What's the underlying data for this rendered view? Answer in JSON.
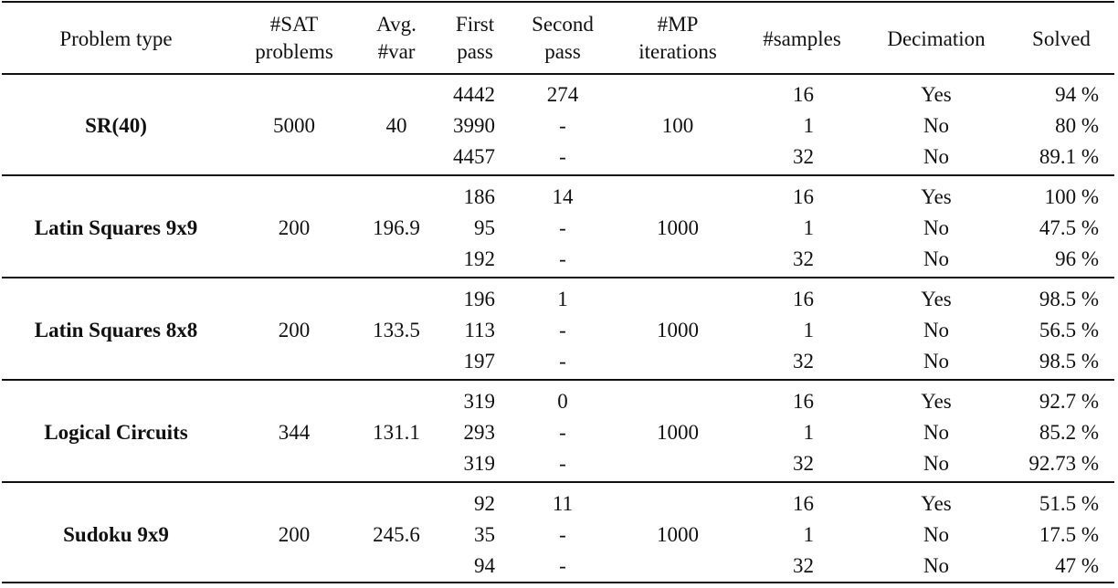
{
  "headers": [
    [
      "Problem type"
    ],
    [
      "#SAT",
      "problems"
    ],
    [
      "Avg.",
      "#var"
    ],
    [
      "First",
      "pass"
    ],
    [
      "Second",
      "pass"
    ],
    [
      "#MP",
      "iterations"
    ],
    [
      "#samples"
    ],
    [
      "Decimation"
    ],
    [
      "Solved"
    ]
  ],
  "groups": [
    {
      "problem_type": "SR(40)",
      "sat_problems": "5000",
      "avg_var": "40",
      "mp_iterations": "100",
      "rows": [
        {
          "first_pass": "4442",
          "second_pass": "274",
          "samples": "16",
          "decimation": "Yes",
          "solved": "94 %"
        },
        {
          "first_pass": "3990",
          "second_pass": "-",
          "samples": "1",
          "decimation": "No",
          "solved": "80 %"
        },
        {
          "first_pass": "4457",
          "second_pass": "-",
          "samples": "32",
          "decimation": "No",
          "solved": "89.1 %"
        }
      ]
    },
    {
      "problem_type": "Latin Squares 9x9",
      "sat_problems": "200",
      "avg_var": "196.9",
      "mp_iterations": "1000",
      "rows": [
        {
          "first_pass": "186",
          "second_pass": "14",
          "samples": "16",
          "decimation": "Yes",
          "solved": "100 %"
        },
        {
          "first_pass": "95",
          "second_pass": "-",
          "samples": "1",
          "decimation": "No",
          "solved": "47.5 %"
        },
        {
          "first_pass": "192",
          "second_pass": "-",
          "samples": "32",
          "decimation": "No",
          "solved": "96 %"
        }
      ]
    },
    {
      "problem_type": "Latin Squares 8x8",
      "sat_problems": "200",
      "avg_var": "133.5",
      "mp_iterations": "1000",
      "rows": [
        {
          "first_pass": "196",
          "second_pass": "1",
          "samples": "16",
          "decimation": "Yes",
          "solved": "98.5 %"
        },
        {
          "first_pass": "113",
          "second_pass": "-",
          "samples": "1",
          "decimation": "No",
          "solved": "56.5 %"
        },
        {
          "first_pass": "197",
          "second_pass": "-",
          "samples": "32",
          "decimation": "No",
          "solved": "98.5 %"
        }
      ]
    },
    {
      "problem_type": "Logical Circuits",
      "sat_problems": "344",
      "avg_var": "131.1",
      "mp_iterations": "1000",
      "rows": [
        {
          "first_pass": "319",
          "second_pass": "0",
          "samples": "16",
          "decimation": "Yes",
          "solved": "92.7 %"
        },
        {
          "first_pass": "293",
          "second_pass": "-",
          "samples": "1",
          "decimation": "No",
          "solved": "85.2 %"
        },
        {
          "first_pass": "319",
          "second_pass": "-",
          "samples": "32",
          "decimation": "No",
          "solved": "92.73 %"
        }
      ]
    },
    {
      "problem_type": "Sudoku 9x9",
      "sat_problems": "200",
      "avg_var": "245.6",
      "mp_iterations": "1000",
      "rows": [
        {
          "first_pass": "92",
          "second_pass": "11",
          "samples": "16",
          "decimation": "Yes",
          "solved": "51.5 %"
        },
        {
          "first_pass": "35",
          "second_pass": "-",
          "samples": "1",
          "decimation": "No",
          "solved": "17.5 %"
        },
        {
          "first_pass": "94",
          "second_pass": "-",
          "samples": "32",
          "decimation": "No",
          "solved": "47 %"
        }
      ]
    }
  ]
}
